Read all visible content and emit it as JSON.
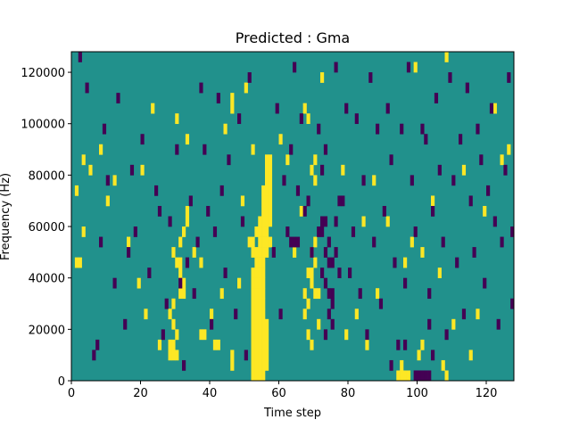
{
  "chart_data": {
    "type": "heatmap",
    "title": "Predicted : Gma",
    "xlabel": "Time step",
    "ylabel": "Frequency (Hz)",
    "xlim": [
      0,
      128
    ],
    "ylim": [
      0,
      128000
    ],
    "xticks": [
      0,
      20,
      40,
      60,
      80,
      100,
      120
    ],
    "xtick_labels": [
      "0",
      "20",
      "40",
      "60",
      "80",
      "100",
      "120"
    ],
    "yticks": [
      0,
      20000,
      40000,
      60000,
      80000,
      100000,
      120000
    ],
    "ytick_labels": [
      "0",
      "20000",
      "40000",
      "60000",
      "80000",
      "100000",
      "120000"
    ],
    "background_value": "mid",
    "colors": {
      "low": "#440154",
      "mid": "#21918c",
      "high": "#fde725"
    },
    "grid": false,
    "legend": "none",
    "rows": 32,
    "row_height_hz": 4000,
    "cells": {
      "high": [
        [
          52,
          0
        ],
        [
          53,
          0
        ],
        [
          54,
          0
        ],
        [
          55,
          0
        ],
        [
          52,
          1
        ],
        [
          53,
          1
        ],
        [
          54,
          1
        ],
        [
          55,
          1
        ],
        [
          56,
          1
        ],
        [
          52,
          2
        ],
        [
          53,
          2
        ],
        [
          54,
          2
        ],
        [
          55,
          2
        ],
        [
          56,
          2
        ],
        [
          52,
          3
        ],
        [
          53,
          3
        ],
        [
          54,
          3
        ],
        [
          55,
          3
        ],
        [
          56,
          3
        ],
        [
          52,
          4
        ],
        [
          53,
          4
        ],
        [
          54,
          4
        ],
        [
          55,
          4
        ],
        [
          56,
          4
        ],
        [
          52,
          5
        ],
        [
          53,
          5
        ],
        [
          54,
          5
        ],
        [
          55,
          5
        ],
        [
          56,
          5
        ],
        [
          52,
          6
        ],
        [
          53,
          6
        ],
        [
          54,
          6
        ],
        [
          55,
          6
        ],
        [
          52,
          7
        ],
        [
          53,
          7
        ],
        [
          54,
          7
        ],
        [
          55,
          7
        ],
        [
          52,
          8
        ],
        [
          53,
          8
        ],
        [
          54,
          8
        ],
        [
          55,
          8
        ],
        [
          52,
          9
        ],
        [
          53,
          9
        ],
        [
          54,
          9
        ],
        [
          55,
          9
        ],
        [
          52,
          10
        ],
        [
          53,
          10
        ],
        [
          54,
          10
        ],
        [
          55,
          10
        ],
        [
          53,
          11
        ],
        [
          54,
          11
        ],
        [
          55,
          11
        ],
        [
          52,
          12
        ],
        [
          53,
          12
        ],
        [
          54,
          12
        ],
        [
          55,
          12
        ],
        [
          56,
          12
        ],
        [
          54,
          13
        ],
        [
          55,
          13
        ],
        [
          56,
          13
        ],
        [
          57,
          13
        ],
        [
          53,
          14
        ],
        [
          54,
          14
        ],
        [
          55,
          14
        ],
        [
          56,
          14
        ],
        [
          54,
          15
        ],
        [
          55,
          15
        ],
        [
          56,
          15
        ],
        [
          57,
          15
        ],
        [
          55,
          16
        ],
        [
          56,
          16
        ],
        [
          57,
          16
        ],
        [
          55,
          17
        ],
        [
          56,
          17
        ],
        [
          57,
          17
        ],
        [
          55,
          18
        ],
        [
          56,
          18
        ],
        [
          57,
          18
        ],
        [
          56,
          19
        ],
        [
          57,
          19
        ],
        [
          56,
          20
        ],
        [
          57,
          20
        ],
        [
          56,
          21
        ],
        [
          57,
          21
        ],
        [
          28,
          2
        ],
        [
          29,
          2
        ],
        [
          30,
          2
        ],
        [
          28,
          3
        ],
        [
          29,
          3
        ],
        [
          30,
          4
        ],
        [
          29,
          5
        ],
        [
          28,
          6
        ],
        [
          29,
          7
        ],
        [
          31,
          8
        ],
        [
          32,
          8
        ],
        [
          32,
          9
        ],
        [
          31,
          10
        ],
        [
          30,
          11
        ],
        [
          31,
          11
        ],
        [
          29,
          12
        ],
        [
          31,
          13
        ],
        [
          32,
          14
        ],
        [
          33,
          15
        ],
        [
          33,
          16
        ],
        [
          37,
          4
        ],
        [
          38,
          4
        ],
        [
          41,
          3
        ],
        [
          42,
          3
        ],
        [
          46,
          1
        ],
        [
          46,
          2
        ],
        [
          51,
          13
        ],
        [
          52,
          13
        ],
        [
          67,
          8
        ],
        [
          68,
          7
        ],
        [
          69,
          9
        ],
        [
          70,
          8
        ],
        [
          71,
          8
        ],
        [
          68,
          10
        ],
        [
          69,
          10
        ],
        [
          70,
          11
        ],
        [
          69,
          12
        ],
        [
          70,
          13
        ],
        [
          68,
          4
        ],
        [
          69,
          3
        ],
        [
          71,
          5
        ],
        [
          67,
          6
        ],
        [
          70,
          19
        ],
        [
          69,
          20
        ],
        [
          70,
          21
        ],
        [
          68,
          25
        ],
        [
          67,
          26
        ],
        [
          94,
          0
        ],
        [
          95,
          0
        ],
        [
          96,
          0
        ],
        [
          97,
          0
        ],
        [
          95,
          1
        ],
        [
          101,
          3
        ],
        [
          100,
          2
        ],
        [
          107,
          1
        ],
        [
          108,
          0
        ],
        [
          1,
          11
        ],
        [
          2,
          11
        ],
        [
          3,
          14
        ],
        [
          1,
          18
        ],
        [
          3,
          21
        ],
        [
          5,
          20
        ],
        [
          8,
          22
        ],
        [
          10,
          17
        ],
        [
          12,
          19
        ],
        [
          16,
          13
        ],
        [
          19,
          9
        ],
        [
          20,
          20
        ],
        [
          21,
          6
        ],
        [
          23,
          26
        ],
        [
          25,
          3
        ],
        [
          30,
          25
        ],
        [
          33,
          23
        ],
        [
          35,
          12
        ],
        [
          37,
          11
        ],
        [
          40,
          6
        ],
        [
          43,
          8
        ],
        [
          44,
          24
        ],
        [
          46,
          26
        ],
        [
          46,
          27
        ],
        [
          48,
          9
        ],
        [
          49,
          17
        ],
        [
          50,
          28
        ],
        [
          52,
          22
        ],
        [
          60,
          23
        ],
        [
          62,
          21
        ],
        [
          64,
          12
        ],
        [
          66,
          16
        ],
        [
          72,
          29
        ],
        [
          78,
          20
        ],
        [
          79,
          4
        ],
        [
          82,
          6
        ],
        [
          84,
          15
        ],
        [
          85,
          3
        ],
        [
          87,
          19
        ],
        [
          88,
          8
        ],
        [
          91,
          15
        ],
        [
          96,
          11
        ],
        [
          98,
          13
        ],
        [
          99,
          30
        ],
        [
          101,
          12
        ],
        [
          104,
          17
        ],
        [
          106,
          10
        ],
        [
          108,
          31
        ],
        [
          110,
          5
        ],
        [
          113,
          20
        ],
        [
          115,
          2
        ],
        [
          117,
          6
        ],
        [
          119,
          16
        ],
        [
          122,
          26
        ],
        [
          124,
          21
        ],
        [
          126,
          22
        ]
      ],
      "low": [
        [
          72,
          15
        ],
        [
          73,
          15
        ],
        [
          71,
          14
        ],
        [
          72,
          14
        ],
        [
          63,
          13
        ],
        [
          64,
          13
        ],
        [
          65,
          13
        ],
        [
          73,
          12
        ],
        [
          74,
          11
        ],
        [
          75,
          11
        ],
        [
          72,
          10
        ],
        [
          73,
          9
        ],
        [
          74,
          8
        ],
        [
          75,
          8
        ],
        [
          75,
          7
        ],
        [
          74,
          6
        ],
        [
          75,
          5
        ],
        [
          73,
          4
        ],
        [
          76,
          12
        ],
        [
          77,
          10
        ],
        [
          74,
          13
        ],
        [
          76,
          15
        ],
        [
          77,
          17
        ],
        [
          99,
          0
        ],
        [
          100,
          0
        ],
        [
          101,
          0
        ],
        [
          102,
          0
        ],
        [
          103,
          0
        ],
        [
          96,
          3
        ],
        [
          92,
          1
        ],
        [
          104,
          2
        ],
        [
          103,
          5
        ],
        [
          2,
          31
        ],
        [
          4,
          28
        ],
        [
          6,
          2
        ],
        [
          7,
          3
        ],
        [
          8,
          13
        ],
        [
          9,
          24
        ],
        [
          10,
          19
        ],
        [
          12,
          9
        ],
        [
          13,
          27
        ],
        [
          15,
          5
        ],
        [
          16,
          12
        ],
        [
          17,
          20
        ],
        [
          18,
          14
        ],
        [
          20,
          23
        ],
        [
          22,
          10
        ],
        [
          24,
          18
        ],
        [
          25,
          16
        ],
        [
          26,
          4
        ],
        [
          27,
          7
        ],
        [
          28,
          15
        ],
        [
          30,
          22
        ],
        [
          31,
          9
        ],
        [
          32,
          1
        ],
        [
          33,
          11
        ],
        [
          34,
          17
        ],
        [
          35,
          8
        ],
        [
          36,
          13
        ],
        [
          37,
          28
        ],
        [
          38,
          22
        ],
        [
          39,
          16
        ],
        [
          40,
          5
        ],
        [
          41,
          14
        ],
        [
          42,
          27
        ],
        [
          43,
          18
        ],
        [
          44,
          10
        ],
        [
          45,
          21
        ],
        [
          47,
          6
        ],
        [
          48,
          25
        ],
        [
          49,
          15
        ],
        [
          50,
          2
        ],
        [
          51,
          29
        ],
        [
          58,
          12
        ],
        [
          59,
          26
        ],
        [
          60,
          6
        ],
        [
          61,
          19
        ],
        [
          62,
          14
        ],
        [
          63,
          22
        ],
        [
          64,
          30
        ],
        [
          65,
          18
        ],
        [
          66,
          25
        ],
        [
          67,
          16
        ],
        [
          68,
          17
        ],
        [
          69,
          12
        ],
        [
          71,
          24
        ],
        [
          72,
          20
        ],
        [
          73,
          22
        ],
        [
          76,
          30
        ],
        [
          78,
          17
        ],
        [
          79,
          26
        ],
        [
          80,
          10
        ],
        [
          81,
          14
        ],
        [
          82,
          25
        ],
        [
          83,
          8
        ],
        [
          84,
          19
        ],
        [
          85,
          4
        ],
        [
          86,
          29
        ],
        [
          87,
          13
        ],
        [
          88,
          24
        ],
        [
          89,
          7
        ],
        [
          90,
          16
        ],
        [
          91,
          26
        ],
        [
          92,
          21
        ],
        [
          93,
          11
        ],
        [
          94,
          3
        ],
        [
          95,
          24
        ],
        [
          96,
          9
        ],
        [
          97,
          30
        ],
        [
          98,
          19
        ],
        [
          99,
          14
        ],
        [
          101,
          24
        ],
        [
          102,
          23
        ],
        [
          103,
          8
        ],
        [
          104,
          16
        ],
        [
          105,
          27
        ],
        [
          106,
          20
        ],
        [
          107,
          13
        ],
        [
          108,
          4
        ],
        [
          109,
          29
        ],
        [
          110,
          19
        ],
        [
          111,
          11
        ],
        [
          112,
          23
        ],
        [
          113,
          6
        ],
        [
          114,
          28
        ],
        [
          115,
          17
        ],
        [
          116,
          12
        ],
        [
          117,
          24
        ],
        [
          118,
          21
        ],
        [
          119,
          9
        ],
        [
          120,
          18
        ],
        [
          121,
          26
        ],
        [
          122,
          15
        ],
        [
          123,
          5
        ],
        [
          124,
          13
        ],
        [
          125,
          20
        ],
        [
          126,
          29
        ],
        [
          127,
          7
        ],
        [
          127,
          14
        ]
      ]
    }
  }
}
